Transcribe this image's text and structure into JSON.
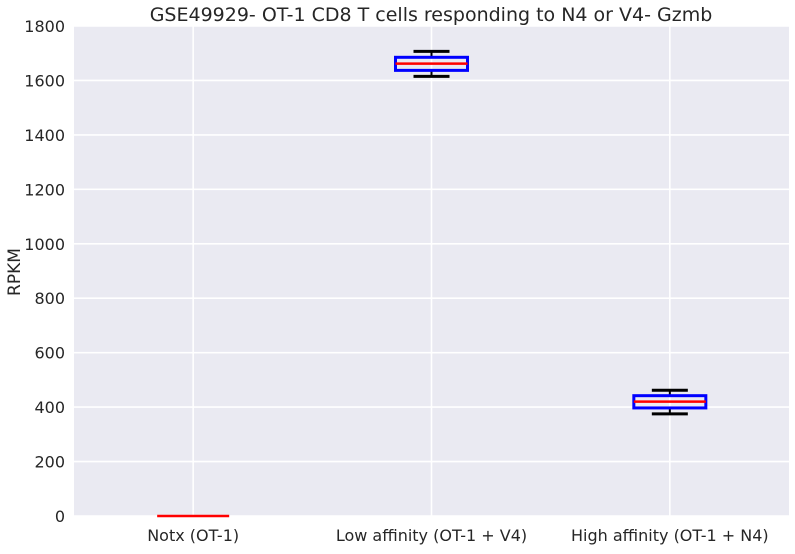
{
  "chart_data": {
    "type": "box",
    "title": "GSE49929- OT-1 CD8 T cells responding to N4 or V4- Gzmb",
    "xlabel": "",
    "ylabel": "RPKM",
    "ylim": [
      0,
      1800
    ],
    "yticks": [
      0,
      200,
      400,
      600,
      800,
      1000,
      1200,
      1400,
      1600,
      1800
    ],
    "grid": true,
    "categories": [
      "Notx (OT-1)",
      "Low affinity (OT-1 + V4)",
      "High affinity (OT-1 + N4)"
    ],
    "boxes": [
      {
        "category": "Notx (OT-1)",
        "whisker_low": 0,
        "q1": 0,
        "median": 0,
        "q3": 0,
        "whisker_high": 0
      },
      {
        "category": "Low affinity (OT-1 + V4)",
        "whisker_low": 1615,
        "q1": 1637,
        "median": 1662,
        "q3": 1685,
        "whisker_high": 1707
      },
      {
        "category": "High affinity (OT-1 + N4)",
        "whisker_low": 375,
        "q1": 397,
        "median": 420,
        "q3": 442,
        "whisker_high": 462
      }
    ],
    "colors": {
      "background": "#eaeaf2",
      "grid": "#ffffff",
      "box": "#0000ff",
      "median": "#ff0000",
      "whisker": "#000000"
    }
  }
}
